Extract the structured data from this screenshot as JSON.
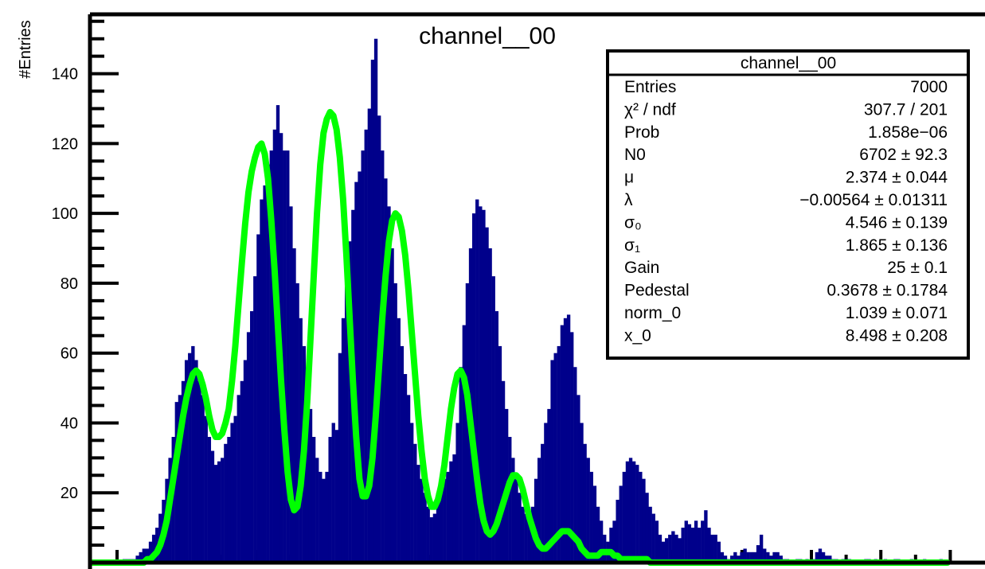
{
  "chart_data": {
    "type": "histogram",
    "title": "channel__00",
    "ylabel": "#Entries",
    "xlabel": "",
    "ylim": [
      0,
      157
    ],
    "y_ticks": [
      20,
      40,
      60,
      80,
      100,
      120,
      140
    ],
    "histogram_series": {
      "name": "channel__00",
      "color": "#00008b",
      "values": [
        0,
        0,
        0,
        0,
        0,
        0,
        0,
        0,
        0,
        0,
        1,
        1,
        1,
        1,
        2,
        3,
        4,
        4,
        6,
        8,
        10,
        14,
        18,
        24,
        30,
        36,
        46,
        48,
        52,
        58,
        60,
        62,
        58,
        52,
        48,
        42,
        36,
        32,
        28,
        29,
        30,
        34,
        36,
        40,
        42,
        48,
        52,
        58,
        66,
        72,
        82,
        94,
        104,
        108,
        114,
        118,
        124,
        131,
        123,
        118,
        118,
        102,
        90,
        80,
        70,
        62,
        52,
        44,
        36,
        30,
        26,
        24,
        26,
        36,
        40,
        38,
        60,
        70,
        80,
        92,
        101,
        109,
        112,
        118,
        124,
        130,
        144,
        150,
        128,
        118,
        110,
        102,
        90,
        80,
        70,
        62,
        54,
        48,
        40,
        34,
        28,
        24,
        20,
        16,
        13,
        14,
        20,
        22,
        24,
        26,
        29,
        31,
        40,
        56,
        68,
        80,
        90,
        100,
        104,
        102,
        101,
        96,
        90,
        82,
        72,
        62,
        52,
        44,
        36,
        30,
        24,
        20,
        16,
        14,
        14,
        16,
        24,
        30,
        34,
        40,
        44,
        58,
        60,
        62,
        68,
        70,
        71,
        66,
        56,
        48,
        40,
        34,
        30,
        26,
        22,
        16,
        12,
        8,
        6,
        10,
        12,
        18,
        22,
        26,
        29,
        30,
        29,
        28,
        26,
        24,
        20,
        16,
        14,
        12,
        8,
        6,
        7,
        8,
        9,
        8,
        7,
        10,
        12,
        11,
        10,
        12,
        10,
        12,
        15,
        10,
        8,
        8,
        6,
        3,
        2,
        1,
        2,
        3,
        2,
        3,
        4,
        3,
        3,
        3,
        5,
        8,
        4,
        3,
        2,
        3,
        3,
        2,
        1,
        1,
        0,
        0,
        1,
        1,
        0,
        1,
        0,
        1,
        3,
        4,
        3,
        2,
        2,
        1,
        1,
        0,
        1,
        1,
        1,
        0,
        0,
        0,
        0,
        1,
        1,
        0,
        1,
        0,
        0,
        1,
        0,
        0,
        1,
        1,
        0,
        0,
        0,
        1,
        0,
        0,
        0,
        1,
        0,
        0,
        0,
        0,
        1,
        0,
        0,
        0,
        0,
        0,
        0,
        0,
        0,
        0,
        0,
        0,
        0,
        0
      ]
    },
    "fit_series": {
      "name": "fit",
      "color": "#00ff00",
      "values": [
        0,
        0,
        0,
        0,
        0,
        0,
        0,
        0,
        0,
        0,
        0,
        0,
        0,
        0,
        0,
        0,
        0,
        1,
        1,
        2,
        3,
        5,
        8,
        12,
        18,
        24,
        30,
        36,
        42,
        47,
        51,
        54,
        55,
        54,
        51,
        47,
        42,
        38,
        36,
        36,
        37,
        40,
        44,
        52,
        62,
        74,
        86,
        97,
        106,
        112,
        116,
        119,
        120,
        117,
        110,
        98,
        84,
        68,
        52,
        38,
        26,
        18,
        15,
        16,
        22,
        32,
        46,
        64,
        82,
        100,
        114,
        123,
        127,
        129,
        128,
        124,
        116,
        104,
        88,
        70,
        52,
        36,
        24,
        19,
        19,
        22,
        30,
        42,
        56,
        70,
        82,
        92,
        98,
        100,
        99,
        95,
        88,
        78,
        66,
        54,
        42,
        32,
        24,
        19,
        16,
        16,
        18,
        22,
        28,
        36,
        44,
        50,
        54,
        55,
        53,
        48,
        40,
        32,
        24,
        17,
        12,
        9,
        8,
        9,
        11,
        14,
        17,
        20,
        23,
        25,
        25,
        24,
        21,
        17,
        13,
        10,
        7,
        5,
        4,
        4,
        5,
        6,
        7,
        8,
        9,
        9,
        9,
        8,
        7,
        6,
        4,
        3,
        2,
        2,
        2,
        2,
        3,
        3,
        3,
        3,
        2,
        2,
        1,
        1,
        1,
        1,
        1,
        1,
        1,
        1,
        1,
        0,
        0,
        0,
        0,
        0,
        0,
        0,
        0,
        0,
        0,
        0,
        0,
        0,
        0,
        0,
        0,
        0,
        0,
        0,
        0,
        0,
        0,
        0,
        0,
        0,
        0,
        0,
        0,
        0,
        0,
        0,
        0,
        0,
        0,
        0,
        0,
        0,
        0,
        0,
        0,
        0,
        0,
        0,
        0,
        0,
        0,
        0,
        0,
        0,
        0,
        0,
        0,
        0,
        0,
        0,
        0,
        0,
        0,
        0,
        0,
        0,
        0,
        0,
        0,
        0,
        0,
        0,
        0,
        0,
        0,
        0,
        0,
        0,
        0,
        0,
        0,
        0,
        0,
        0,
        0,
        0,
        0,
        0,
        0,
        0,
        0,
        0,
        0,
        0,
        0,
        0,
        0
      ]
    },
    "stats_box": {
      "title": "channel__00",
      "rows": [
        {
          "label": "Entries",
          "value": "7000"
        },
        {
          "label": "χ² / ndf",
          "value": "307.7 / 201"
        },
        {
          "label": "Prob",
          "value": "1.858e−06"
        },
        {
          "label": "N0",
          "value": "6702 ± 92.3"
        },
        {
          "label": "μ",
          "value": "2.374 ± 0.044"
        },
        {
          "label": "λ",
          "value": "−0.00564 ± 0.01311"
        },
        {
          "label": "σ₀",
          "value": "4.546 ± 0.139"
        },
        {
          "label": "σ₁",
          "value": "1.865 ± 0.136"
        },
        {
          "label": "Gain",
          "value": "25 ± 0.1"
        },
        {
          "label": "Pedestal",
          "value": "0.3678 ± 0.1784"
        },
        {
          "label": "norm_0",
          "value": "1.039 ± 0.071"
        },
        {
          "label": "x_0",
          "value": "8.498 ± 0.208"
        }
      ]
    }
  }
}
